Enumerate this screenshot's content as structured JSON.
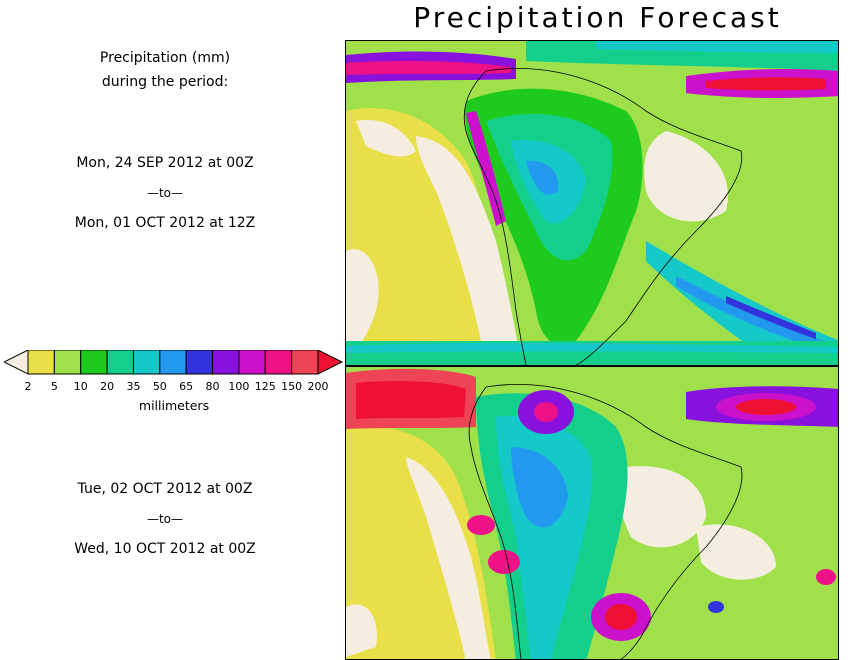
{
  "title": "Precipitation Forecast",
  "header": {
    "line1": "Precipitation (mm)",
    "line2": "during the period:"
  },
  "period1": {
    "start": "Mon, 24 SEP 2012 at 00Z",
    "to": "—to—",
    "end": "Mon, 01 OCT 2012 at 12Z"
  },
  "period2": {
    "start": "Tue, 02 OCT 2012 at 00Z",
    "to": "—to—",
    "end": "Wed, 10 OCT 2012 at 00Z"
  },
  "legend": {
    "label": "millimeters",
    "ticks": [
      "2",
      "5",
      "10",
      "20",
      "35",
      "50",
      "65",
      "80",
      "100",
      "125",
      "150",
      "200"
    ],
    "colors": [
      "#f5eee0",
      "#e8df49",
      "#9fe04b",
      "#1fca1f",
      "#13cf8b",
      "#16c9c9",
      "#2299ee",
      "#3333dd",
      "#8811dd",
      "#cc11cc",
      "#ee1188",
      "#ee4455",
      "#ee1133"
    ]
  }
}
